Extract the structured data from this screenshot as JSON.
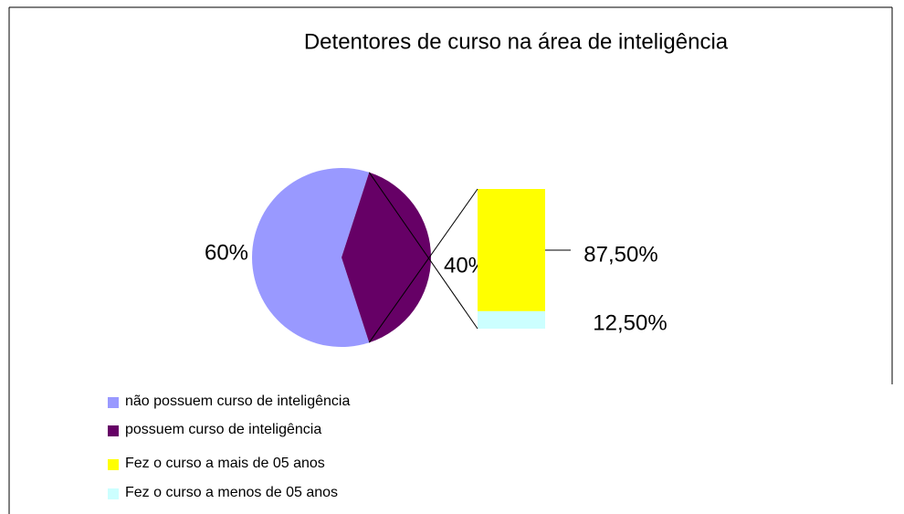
{
  "chart_data": {
    "type": "pie",
    "title": "Detentores de curso na área de inteligência",
    "pie": {
      "categories": [
        "não possuem curso de inteligência",
        "possuem curso de inteligência"
      ],
      "values": [
        60,
        40
      ],
      "value_labels": [
        "60%",
        "40%"
      ],
      "colors": [
        "#9999ff",
        "#660066"
      ]
    },
    "bar": {
      "categories": [
        "Fez o curso a mais de 05 anos",
        "Fez o curso a menos de 05 anos"
      ],
      "values": [
        87.5,
        12.5
      ],
      "value_labels": [
        "87,50%",
        "12,50%"
      ],
      "colors": [
        "#ffff00",
        "#ccffff"
      ]
    }
  }
}
